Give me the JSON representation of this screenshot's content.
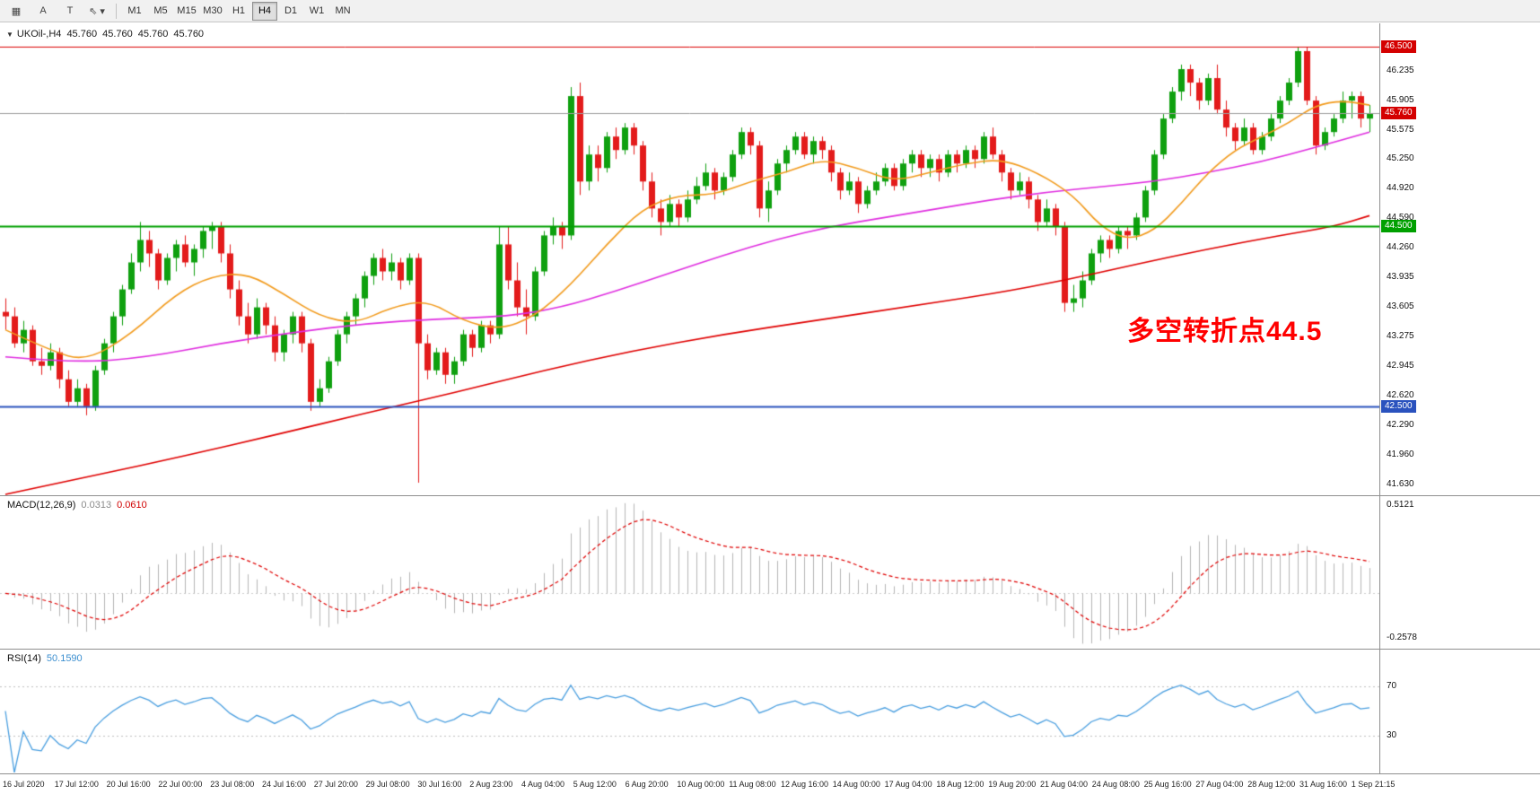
{
  "toolbar": {
    "tools": [
      {
        "id": "charts-grid",
        "glyph": "▦"
      },
      {
        "id": "text-annotation",
        "glyph": "A"
      },
      {
        "id": "text-box",
        "glyph": "T"
      },
      {
        "id": "cursor",
        "glyph": "⇖ ▾"
      }
    ],
    "timeframes": [
      "M1",
      "M5",
      "M15",
      "M30",
      "H1",
      "H4",
      "D1",
      "W1",
      "MN"
    ],
    "active_timeframe": "H4"
  },
  "chart": {
    "header": {
      "dropdown": "▼",
      "symbol": "UKOil-,H4",
      "open": "45.760",
      "high": "45.760",
      "low": "45.760",
      "close": "45.760"
    },
    "annotation": {
      "text": "多空转折点44.5",
      "color": "#ff0000"
    },
    "price_axis_labels": [
      46.235,
      45.905,
      45.575,
      45.25,
      44.92,
      44.59,
      44.26,
      43.935,
      43.605,
      43.275,
      42.945,
      42.62,
      42.29,
      41.96,
      41.63
    ],
    "price_tags": [
      {
        "label": "46.500",
        "price": 46.5,
        "color": "#d40000"
      },
      {
        "label": "45.760",
        "price": 45.76,
        "color": "#d40000"
      },
      {
        "label": "44.500",
        "price": 44.5,
        "color": "#00a000"
      },
      {
        "label": "42.500",
        "price": 42.5,
        "color": "#2a52be"
      }
    ]
  },
  "macd": {
    "name": "MACD(12,26,9)",
    "value_main": "0.0313",
    "value_signal": "0.0610",
    "scale_max": "0.5121",
    "scale_min": "-0.2578",
    "histogram_color": "#b5b5b5",
    "signal_color": "#e00000"
  },
  "rsi": {
    "name": "RSI(14)",
    "value": "50.1590",
    "line_color": "#4a9fe0",
    "levels": [
      "70",
      "30"
    ]
  },
  "time_axis": [
    "16 Jul 2020",
    "17 Jul 12:00",
    "20 Jul 16:00",
    "22 Jul 00:00",
    "23 Jul 08:00",
    "24 Jul 16:00",
    "27 Jul 20:00",
    "29 Jul 08:00",
    "30 Jul 16:00",
    "2 Aug 23:00",
    "4 Aug 04:00",
    "5 Aug 12:00",
    "6 Aug 20:00",
    "10 Aug 00:00",
    "11 Aug 08:00",
    "12 Aug 16:00",
    "14 Aug 00:00",
    "17 Aug 04:00",
    "18 Aug 12:00",
    "19 Aug 20:00",
    "21 Aug 04:00",
    "24 Aug 08:00",
    "25 Aug 16:00",
    "27 Aug 04:00",
    "28 Aug 12:00",
    "31 Aug 16:00",
    "1 Sep 21:15"
  ],
  "chart_data": {
    "type": "candlestick",
    "symbol": "UKOil-",
    "timeframe": "H4",
    "price_range": [
      41.63,
      46.5
    ],
    "hlines": [
      {
        "price": 46.5,
        "color": "#dd0000",
        "width": 1
      },
      {
        "price": 45.76,
        "color": "#9f9f9f",
        "width": 1
      },
      {
        "price": 44.5,
        "color": "#00a000",
        "width": 2
      },
      {
        "price": 42.5,
        "color": "#2a52be",
        "width": 2
      }
    ],
    "candles": [
      [
        43.55,
        43.7,
        43.35,
        43.5
      ],
      [
        43.5,
        43.6,
        43.15,
        43.2
      ],
      [
        43.2,
        43.45,
        43.1,
        43.35
      ],
      [
        43.35,
        43.4,
        42.95,
        43.0
      ],
      [
        43.0,
        43.15,
        42.85,
        42.95
      ],
      [
        42.95,
        43.2,
        42.9,
        43.1
      ],
      [
        43.1,
        43.15,
        42.7,
        42.8
      ],
      [
        42.8,
        42.9,
        42.5,
        42.55
      ],
      [
        42.55,
        42.8,
        42.5,
        42.7
      ],
      [
        42.7,
        42.75,
        42.4,
        42.5
      ],
      [
        42.5,
        42.95,
        42.45,
        42.9
      ],
      [
        42.9,
        43.25,
        42.85,
        43.2
      ],
      [
        43.2,
        43.55,
        43.1,
        43.5
      ],
      [
        43.5,
        43.85,
        43.4,
        43.8
      ],
      [
        43.8,
        44.2,
        43.75,
        44.1
      ],
      [
        44.1,
        44.55,
        44.0,
        44.35
      ],
      [
        44.35,
        44.45,
        44.05,
        44.2
      ],
      [
        44.2,
        44.25,
        43.8,
        43.9
      ],
      [
        43.9,
        44.2,
        43.85,
        44.15
      ],
      [
        44.15,
        44.35,
        44.0,
        44.3
      ],
      [
        44.3,
        44.4,
        44.05,
        44.1
      ],
      [
        44.1,
        44.3,
        43.95,
        44.25
      ],
      [
        44.25,
        44.5,
        44.15,
        44.45
      ],
      [
        44.45,
        44.55,
        44.25,
        44.5
      ],
      [
        44.5,
        44.55,
        44.1,
        44.2
      ],
      [
        44.2,
        44.3,
        43.7,
        43.8
      ],
      [
        43.8,
        43.9,
        43.4,
        43.5
      ],
      [
        43.5,
        43.65,
        43.2,
        43.3
      ],
      [
        43.3,
        43.7,
        43.25,
        43.6
      ],
      [
        43.6,
        43.65,
        43.3,
        43.4
      ],
      [
        43.4,
        43.5,
        43.0,
        43.1
      ],
      [
        43.1,
        43.35,
        43.0,
        43.3
      ],
      [
        43.3,
        43.55,
        43.2,
        43.5
      ],
      [
        43.5,
        43.55,
        43.1,
        43.2
      ],
      [
        43.2,
        43.25,
        42.45,
        42.55
      ],
      [
        42.55,
        42.8,
        42.5,
        42.7
      ],
      [
        42.7,
        43.05,
        42.65,
        43.0
      ],
      [
        43.0,
        43.35,
        42.95,
        43.3
      ],
      [
        43.3,
        43.55,
        43.2,
        43.5
      ],
      [
        43.5,
        43.75,
        43.4,
        43.7
      ],
      [
        43.7,
        44.0,
        43.6,
        43.95
      ],
      [
        43.95,
        44.2,
        43.85,
        44.15
      ],
      [
        44.15,
        44.25,
        43.9,
        44.0
      ],
      [
        44.0,
        44.2,
        43.9,
        44.1
      ],
      [
        44.1,
        44.15,
        43.8,
        43.9
      ],
      [
        43.9,
        44.2,
        43.85,
        44.15
      ],
      [
        44.15,
        44.2,
        41.65,
        43.2
      ],
      [
        43.2,
        43.3,
        42.8,
        42.9
      ],
      [
        42.9,
        43.15,
        42.85,
        43.1
      ],
      [
        43.1,
        43.15,
        42.75,
        42.85
      ],
      [
        42.85,
        43.05,
        42.75,
        43.0
      ],
      [
        43.0,
        43.35,
        42.95,
        43.3
      ],
      [
        43.3,
        43.35,
        43.05,
        43.15
      ],
      [
        43.15,
        43.45,
        43.1,
        43.4
      ],
      [
        43.4,
        43.45,
        43.2,
        43.3
      ],
      [
        43.3,
        44.5,
        43.25,
        44.3
      ],
      [
        44.3,
        44.5,
        43.8,
        43.9
      ],
      [
        43.9,
        44.1,
        43.5,
        43.6
      ],
      [
        43.6,
        43.8,
        43.3,
        43.5
      ],
      [
        43.5,
        44.05,
        43.45,
        44.0
      ],
      [
        44.0,
        44.45,
        43.95,
        44.4
      ],
      [
        44.4,
        44.6,
        44.3,
        44.5
      ],
      [
        44.5,
        44.55,
        44.25,
        44.4
      ],
      [
        44.4,
        46.05,
        44.35,
        45.95
      ],
      [
        45.95,
        46.1,
        44.85,
        45.0
      ],
      [
        45.0,
        45.4,
        44.9,
        45.3
      ],
      [
        45.3,
        45.4,
        45.0,
        45.15
      ],
      [
        45.15,
        45.55,
        45.1,
        45.5
      ],
      [
        45.5,
        45.6,
        45.25,
        45.35
      ],
      [
        45.35,
        45.65,
        45.3,
        45.6
      ],
      [
        45.6,
        45.65,
        45.3,
        45.4
      ],
      [
        45.4,
        45.45,
        44.9,
        45.0
      ],
      [
        45.0,
        45.1,
        44.6,
        44.7
      ],
      [
        44.7,
        44.8,
        44.4,
        44.55
      ],
      [
        44.55,
        44.85,
        44.5,
        44.75
      ],
      [
        44.75,
        44.8,
        44.5,
        44.6
      ],
      [
        44.6,
        44.9,
        44.55,
        44.8
      ],
      [
        44.8,
        45.05,
        44.75,
        44.95
      ],
      [
        44.95,
        45.2,
        44.9,
        45.1
      ],
      [
        45.1,
        45.15,
        44.8,
        44.9
      ],
      [
        44.9,
        45.1,
        44.85,
        45.05
      ],
      [
        45.05,
        45.35,
        45.0,
        45.3
      ],
      [
        45.3,
        45.6,
        45.25,
        45.55
      ],
      [
        45.55,
        45.6,
        45.3,
        45.4
      ],
      [
        45.4,
        45.45,
        44.6,
        44.7
      ],
      [
        44.7,
        45.0,
        44.55,
        44.9
      ],
      [
        44.9,
        45.25,
        44.85,
        45.2
      ],
      [
        45.2,
        45.4,
        45.1,
        45.35
      ],
      [
        45.35,
        45.55,
        45.3,
        45.5
      ],
      [
        45.5,
        45.55,
        45.25,
        45.3
      ],
      [
        45.3,
        45.5,
        45.2,
        45.45
      ],
      [
        45.45,
        45.5,
        45.25,
        45.35
      ],
      [
        45.35,
        45.4,
        45.0,
        45.1
      ],
      [
        45.1,
        45.15,
        44.8,
        44.9
      ],
      [
        44.9,
        45.1,
        44.85,
        45.0
      ],
      [
        45.0,
        45.05,
        44.65,
        44.75
      ],
      [
        44.75,
        44.95,
        44.7,
        44.9
      ],
      [
        44.9,
        45.1,
        44.85,
        45.0
      ],
      [
        45.0,
        45.2,
        44.95,
        45.15
      ],
      [
        45.15,
        45.2,
        44.9,
        44.95
      ],
      [
        44.95,
        45.25,
        44.9,
        45.2
      ],
      [
        45.2,
        45.35,
        45.1,
        45.3
      ],
      [
        45.3,
        45.35,
        45.05,
        45.15
      ],
      [
        45.15,
        45.3,
        45.05,
        45.25
      ],
      [
        45.25,
        45.3,
        45.0,
        45.1
      ],
      [
        45.1,
        45.35,
        45.05,
        45.3
      ],
      [
        45.3,
        45.35,
        45.1,
        45.2
      ],
      [
        45.2,
        45.4,
        45.15,
        45.35
      ],
      [
        45.35,
        45.4,
        45.15,
        45.25
      ],
      [
        45.25,
        45.55,
        45.2,
        45.5
      ],
      [
        45.5,
        45.6,
        45.25,
        45.3
      ],
      [
        45.3,
        45.35,
        45.0,
        45.1
      ],
      [
        45.1,
        45.15,
        44.8,
        44.9
      ],
      [
        44.9,
        45.1,
        44.85,
        45.0
      ],
      [
        45.0,
        45.05,
        44.7,
        44.8
      ],
      [
        44.8,
        44.85,
        44.45,
        44.55
      ],
      [
        44.55,
        44.8,
        44.5,
        44.7
      ],
      [
        44.7,
        44.75,
        44.4,
        44.5
      ],
      [
        44.5,
        44.55,
        43.55,
        43.65
      ],
      [
        43.65,
        43.85,
        43.55,
        43.7
      ],
      [
        43.7,
        44.0,
        43.6,
        43.9
      ],
      [
        43.9,
        44.25,
        43.85,
        44.2
      ],
      [
        44.2,
        44.4,
        44.1,
        44.35
      ],
      [
        44.35,
        44.4,
        44.15,
        44.25
      ],
      [
        44.25,
        44.5,
        44.2,
        44.45
      ],
      [
        44.45,
        44.5,
        44.25,
        44.4
      ],
      [
        44.4,
        44.65,
        44.35,
        44.6
      ],
      [
        44.6,
        44.95,
        44.55,
        44.9
      ],
      [
        44.9,
        45.35,
        44.85,
        45.3
      ],
      [
        45.3,
        45.75,
        45.25,
        45.7
      ],
      [
        45.7,
        46.05,
        45.65,
        46.0
      ],
      [
        46.0,
        46.3,
        45.9,
        46.25
      ],
      [
        46.25,
        46.3,
        45.95,
        46.1
      ],
      [
        46.1,
        46.15,
        45.8,
        45.9
      ],
      [
        45.9,
        46.2,
        45.85,
        46.15
      ],
      [
        46.15,
        46.3,
        45.75,
        45.8
      ],
      [
        45.8,
        45.9,
        45.5,
        45.6
      ],
      [
        45.6,
        45.65,
        45.35,
        45.45
      ],
      [
        45.45,
        45.7,
        45.4,
        45.6
      ],
      [
        45.6,
        45.65,
        45.3,
        45.35
      ],
      [
        45.35,
        45.55,
        45.3,
        45.5
      ],
      [
        45.5,
        45.75,
        45.45,
        45.7
      ],
      [
        45.7,
        45.95,
        45.65,
        45.9
      ],
      [
        45.9,
        46.15,
        45.85,
        46.1
      ],
      [
        46.1,
        46.5,
        46.05,
        46.45
      ],
      [
        46.45,
        46.5,
        45.85,
        45.9
      ],
      [
        45.9,
        45.95,
        45.3,
        45.4
      ],
      [
        45.4,
        45.6,
        45.35,
        45.55
      ],
      [
        45.55,
        45.75,
        45.5,
        45.7
      ],
      [
        45.7,
        46.0,
        45.65,
        45.9
      ],
      [
        45.9,
        46.0,
        45.7,
        45.95
      ],
      [
        45.95,
        46.0,
        45.6,
        45.7
      ],
      [
        45.7,
        45.85,
        45.55,
        45.76
      ]
    ],
    "overlays": {
      "ma_fast_orange": [
        [
          0,
          43.35
        ],
        [
          5,
          43.12
        ],
        [
          9,
          43.0
        ],
        [
          14,
          43.3
        ],
        [
          19,
          43.75
        ],
        [
          23,
          43.95
        ],
        [
          27,
          43.98
        ],
        [
          31,
          43.75
        ],
        [
          35,
          43.5
        ],
        [
          39,
          43.42
        ],
        [
          43,
          43.6
        ],
        [
          47,
          43.68
        ],
        [
          51,
          43.45
        ],
        [
          55,
          43.35
        ],
        [
          59,
          43.5
        ],
        [
          63,
          43.85
        ],
        [
          67,
          44.3
        ],
        [
          71,
          44.7
        ],
        [
          75,
          44.85
        ],
        [
          79,
          44.85
        ],
        [
          83,
          45.0
        ],
        [
          87,
          45.1
        ],
        [
          91,
          45.25
        ],
        [
          95,
          45.15
        ],
        [
          99,
          45.0
        ],
        [
          103,
          45.1
        ],
        [
          107,
          45.2
        ],
        [
          111,
          45.25
        ],
        [
          115,
          45.1
        ],
        [
          119,
          44.85
        ],
        [
          122,
          44.5
        ],
        [
          125,
          44.35
        ],
        [
          128,
          44.45
        ],
        [
          131,
          44.75
        ],
        [
          134,
          45.1
        ],
        [
          137,
          45.35
        ],
        [
          140,
          45.5
        ],
        [
          143,
          45.65
        ],
        [
          146,
          45.85
        ],
        [
          149,
          45.9
        ],
        [
          152,
          45.85
        ]
      ],
      "ma_mid_magenta": [
        [
          0,
          43.05
        ],
        [
          8,
          42.98
        ],
        [
          16,
          43.05
        ],
        [
          24,
          43.2
        ],
        [
          32,
          43.32
        ],
        [
          40,
          43.42
        ],
        [
          48,
          43.47
        ],
        [
          56,
          43.5
        ],
        [
          62,
          43.6
        ],
        [
          68,
          43.78
        ],
        [
          74,
          43.98
        ],
        [
          80,
          44.18
        ],
        [
          86,
          44.36
        ],
        [
          92,
          44.5
        ],
        [
          98,
          44.6
        ],
        [
          104,
          44.7
        ],
        [
          110,
          44.8
        ],
        [
          116,
          44.88
        ],
        [
          122,
          44.94
        ],
        [
          128,
          45.0
        ],
        [
          134,
          45.1
        ],
        [
          140,
          45.22
        ],
        [
          146,
          45.38
        ],
        [
          152,
          45.55
        ]
      ],
      "ma_slow_red": [
        [
          0,
          41.52
        ],
        [
          10,
          41.73
        ],
        [
          20,
          41.95
        ],
        [
          30,
          42.18
        ],
        [
          40,
          42.42
        ],
        [
          50,
          42.65
        ],
        [
          60,
          42.9
        ],
        [
          70,
          43.12
        ],
        [
          80,
          43.3
        ],
        [
          90,
          43.45
        ],
        [
          100,
          43.6
        ],
        [
          110,
          43.75
        ],
        [
          118,
          43.9
        ],
        [
          126,
          44.08
        ],
        [
          134,
          44.25
        ],
        [
          142,
          44.4
        ],
        [
          148,
          44.5
        ],
        [
          152,
          44.62
        ]
      ]
    },
    "indicators": [
      {
        "type": "MACD",
        "params": [
          12,
          26,
          9
        ],
        "values": [
          0.0313,
          0.061
        ],
        "scale": [
          -0.2578,
          0.5121
        ]
      },
      {
        "type": "RSI",
        "params": [
          14
        ],
        "value": 50.159,
        "levels": [
          30,
          70
        ]
      }
    ]
  }
}
